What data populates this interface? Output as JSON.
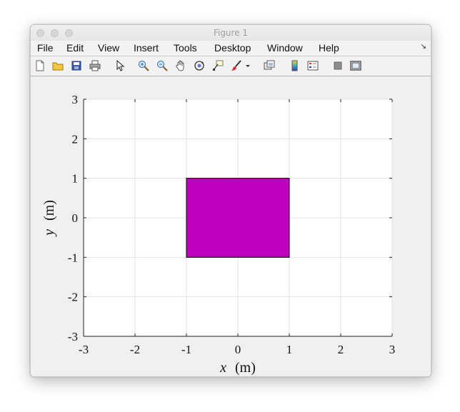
{
  "window": {
    "title": "Figure 1"
  },
  "menu": {
    "items": [
      "File",
      "Edit",
      "View",
      "Insert",
      "Tools",
      "Desktop",
      "Window",
      "Help"
    ],
    "undock_icon": "undock-arrow-icon"
  },
  "toolbar": {
    "icons": [
      "new-figure-icon",
      "open-file-icon",
      "save-icon",
      "print-icon",
      "edit-plot-arrow-icon",
      "zoom-in-icon",
      "zoom-out-icon",
      "pan-hand-icon",
      "rotate-3d-icon",
      "data-cursor-icon",
      "brush-icon",
      "brush-dropdown-icon",
      "link-plot-icon",
      "colorbar-icon",
      "legend-icon",
      "hide-plot-tools-icon",
      "show-plot-tools-icon"
    ]
  },
  "chart_data": {
    "type": "area",
    "title": "",
    "xlabel_var": "x",
    "xlabel_unit": "(m)",
    "ylabel_var": "y",
    "ylabel_unit": "(m)",
    "xlim": [
      -3,
      3
    ],
    "ylim": [
      -3,
      3
    ],
    "xticks": [
      "-3",
      "-2",
      "-1",
      "0",
      "1",
      "2",
      "3"
    ],
    "yticks": [
      "-3",
      "-2",
      "-1",
      "0",
      "1",
      "2",
      "3"
    ],
    "grid": true,
    "series": [
      {
        "shape": "polygon",
        "x": [
          -1,
          1,
          1,
          -1
        ],
        "y": [
          -1,
          -1,
          1,
          1
        ],
        "fill": "#bf00bf",
        "edge": "#000000"
      }
    ]
  }
}
